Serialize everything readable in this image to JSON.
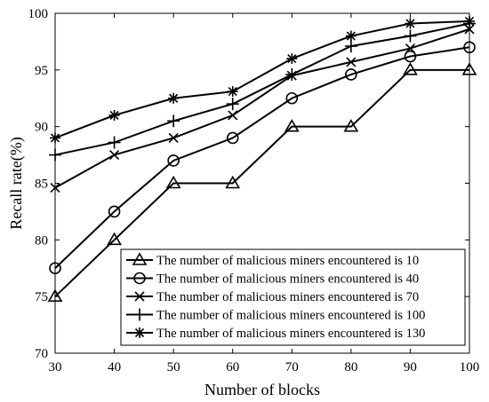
{
  "chart_data": {
    "type": "line",
    "title": "",
    "xlabel": "Number of blocks",
    "ylabel": "Recall rate(%)",
    "x": [
      30,
      40,
      50,
      60,
      70,
      80,
      90,
      100
    ],
    "xlim": [
      30,
      100
    ],
    "ylim": [
      70,
      100
    ],
    "xticks": [
      30,
      40,
      50,
      60,
      70,
      80,
      90,
      100
    ],
    "yticks": [
      70,
      75,
      80,
      85,
      90,
      95,
      100
    ],
    "grid": false,
    "legend_position": "bottom-right",
    "series": [
      {
        "name": "The number of malicious miners encountered is 10",
        "marker": "triangle",
        "values": [
          75,
          80,
          85,
          85,
          90,
          90,
          95,
          95
        ]
      },
      {
        "name": "The number of malicious miners encountered is 40",
        "marker": "circle",
        "values": [
          77.5,
          82.5,
          87,
          89,
          92.5,
          94.6,
          96.2,
          97
        ]
      },
      {
        "name": "The number of malicious miners encountered is 70",
        "marker": "x",
        "values": [
          84.6,
          87.5,
          89,
          91,
          94.5,
          95.7,
          96.9,
          98.6
        ]
      },
      {
        "name": "The number of malicious miners encountered is 100",
        "marker": "plus",
        "values": [
          87.5,
          88.6,
          90.5,
          92,
          94.6,
          97.1,
          98,
          99.1
        ]
      },
      {
        "name": "The number of malicious miners encountered is 130",
        "marker": "asterisk",
        "values": [
          89,
          91,
          92.5,
          93.1,
          96,
          98,
          99.1,
          99.3
        ]
      }
    ]
  }
}
